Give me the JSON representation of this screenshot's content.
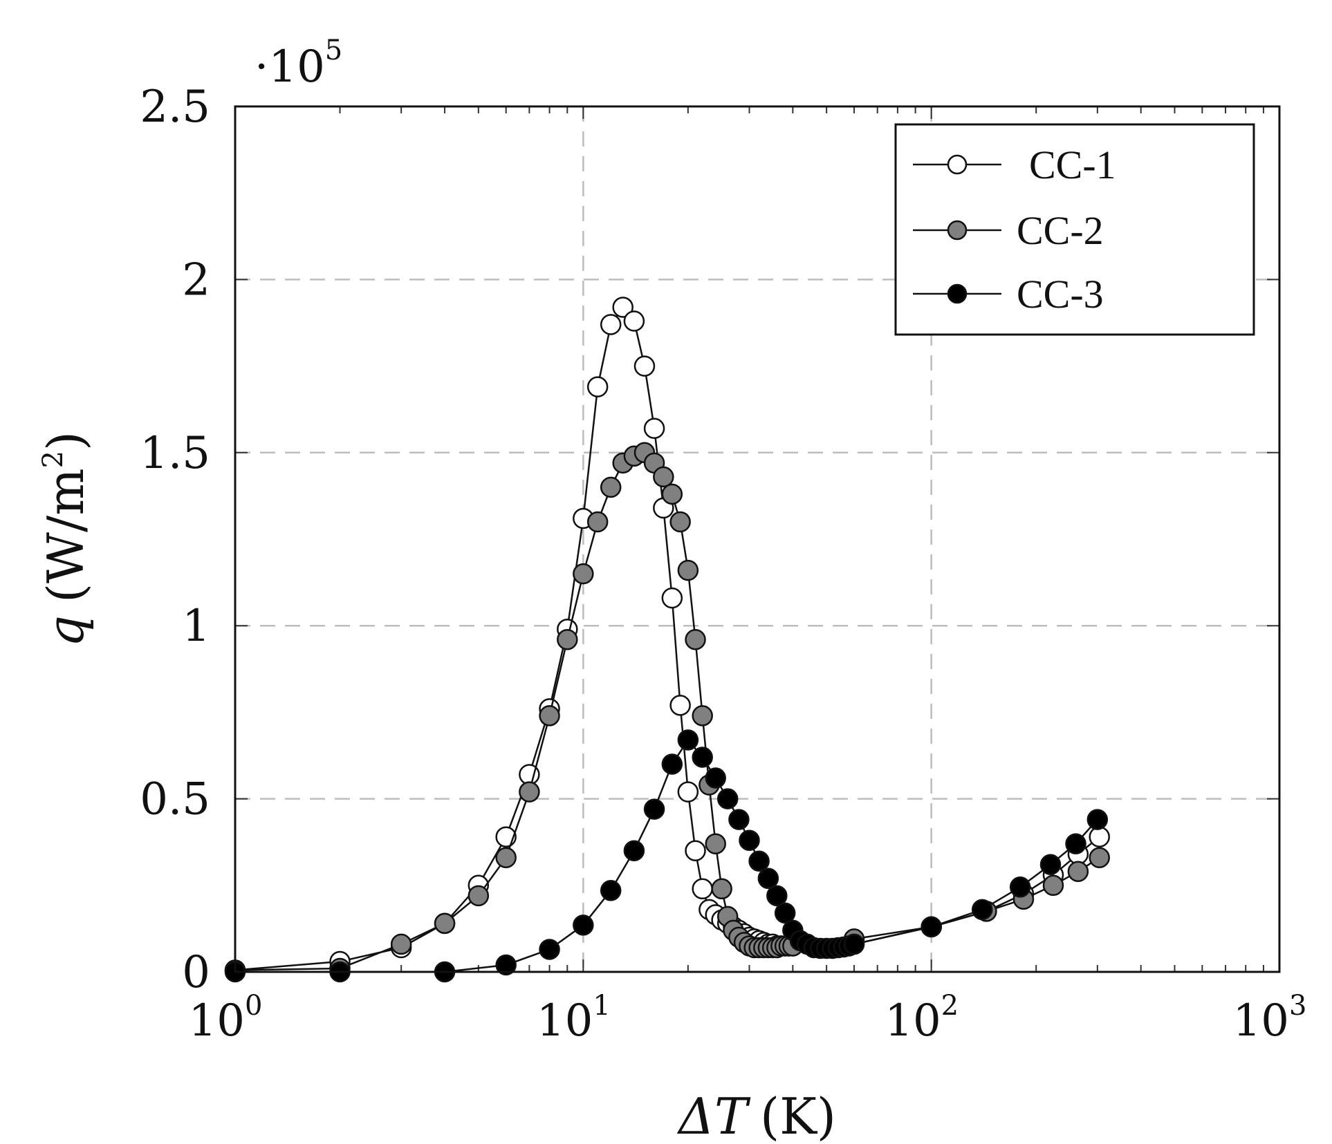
{
  "chart_data": {
    "type": "line",
    "x_scale": "log",
    "xlim": [
      1,
      1000
    ],
    "ylim": [
      0,
      2.5
    ],
    "y_multiplier_label": "·10",
    "y_multiplier_exp": "5",
    "xlabel_symbol": "ΔT",
    "xlabel_unit": "(K)",
    "ylabel_symbol": "q",
    "ylabel_unit_open": "(W/m",
    "ylabel_unit_exp": "2",
    "ylabel_unit_close": ")",
    "y_ticks": [
      {
        "value": 0,
        "label": "0"
      },
      {
        "value": 0.5,
        "label": "0.5"
      },
      {
        "value": 1,
        "label": "1"
      },
      {
        "value": 1.5,
        "label": "1.5"
      },
      {
        "value": 2,
        "label": "2"
      },
      {
        "value": 2.5,
        "label": "2.5"
      }
    ],
    "x_ticks": [
      {
        "value": 1,
        "base": "10",
        "exp": "0"
      },
      {
        "value": 10,
        "base": "10",
        "exp": "1"
      },
      {
        "value": 100,
        "base": "10",
        "exp": "2"
      },
      {
        "value": 1000,
        "base": "10",
        "exp": "3"
      }
    ],
    "grid": true,
    "legend_position": "top-right",
    "series": [
      {
        "name": "CC-1",
        "marker": "open-circle",
        "fill": "#ffffff",
        "x": [
          1,
          2,
          3,
          4,
          5,
          6,
          7,
          8,
          9,
          10,
          11,
          12,
          13,
          14,
          15,
          16,
          17,
          18,
          19,
          20,
          21,
          22,
          23,
          24,
          25,
          26,
          27,
          28,
          29,
          30,
          31,
          32,
          33,
          34,
          35,
          36,
          37,
          38,
          39,
          40,
          60,
          100,
          144,
          184,
          224,
          264,
          304
        ],
        "y": [
          0.005,
          0.03,
          0.07,
          0.14,
          0.25,
          0.39,
          0.57,
          0.76,
          0.99,
          1.31,
          1.69,
          1.87,
          1.92,
          1.88,
          1.75,
          1.57,
          1.34,
          1.08,
          0.77,
          0.52,
          0.35,
          0.24,
          0.18,
          0.165,
          0.15,
          0.14,
          0.13,
          0.12,
          0.11,
          0.1,
          0.095,
          0.09,
          0.085,
          0.08,
          0.08,
          0.075,
          0.075,
          0.075,
          0.075,
          0.075,
          0.08,
          0.13,
          0.175,
          0.225,
          0.28,
          0.34,
          0.39
        ]
      },
      {
        "name": "CC-2",
        "marker": "gray-circle",
        "fill": "#808080",
        "x": [
          1,
          2,
          3,
          4,
          5,
          6,
          7,
          8,
          9,
          10,
          11,
          12,
          13,
          14,
          15,
          16,
          17,
          18,
          19,
          20,
          21,
          22,
          23,
          24,
          25,
          26,
          27,
          28,
          29,
          30,
          31,
          32,
          33,
          34,
          35,
          36,
          37,
          38,
          39,
          40,
          60,
          100,
          144,
          184,
          224,
          264,
          304
        ],
        "y": [
          0.005,
          0.01,
          0.08,
          0.14,
          0.22,
          0.33,
          0.52,
          0.74,
          0.96,
          1.15,
          1.3,
          1.4,
          1.47,
          1.49,
          1.5,
          1.47,
          1.43,
          1.38,
          1.3,
          1.16,
          0.96,
          0.74,
          0.54,
          0.37,
          0.24,
          0.16,
          0.12,
          0.1,
          0.085,
          0.075,
          0.07,
          0.07,
          0.07,
          0.07,
          0.07,
          0.07,
          0.075,
          0.075,
          0.075,
          0.075,
          0.095,
          0.13,
          0.175,
          0.21,
          0.25,
          0.29,
          0.33
        ]
      },
      {
        "name": "CC-3",
        "marker": "filled-circle",
        "fill": "#000000",
        "x": [
          1,
          2,
          4,
          6,
          8,
          10,
          12,
          14,
          16,
          18,
          20,
          22,
          24,
          26,
          28,
          30,
          32,
          34,
          36,
          38,
          40,
          42,
          44,
          46,
          48,
          50,
          52,
          54,
          56,
          58,
          60,
          100,
          140,
          180,
          220,
          260,
          300
        ],
        "y": [
          0.0,
          0.0,
          0.0,
          0.02,
          0.065,
          0.135,
          0.235,
          0.35,
          0.47,
          0.6,
          0.67,
          0.62,
          0.56,
          0.5,
          0.44,
          0.38,
          0.32,
          0.27,
          0.22,
          0.17,
          0.12,
          0.09,
          0.08,
          0.07,
          0.068,
          0.068,
          0.068,
          0.07,
          0.072,
          0.075,
          0.08,
          0.13,
          0.18,
          0.245,
          0.31,
          0.37,
          0.44
        ]
      }
    ]
  }
}
